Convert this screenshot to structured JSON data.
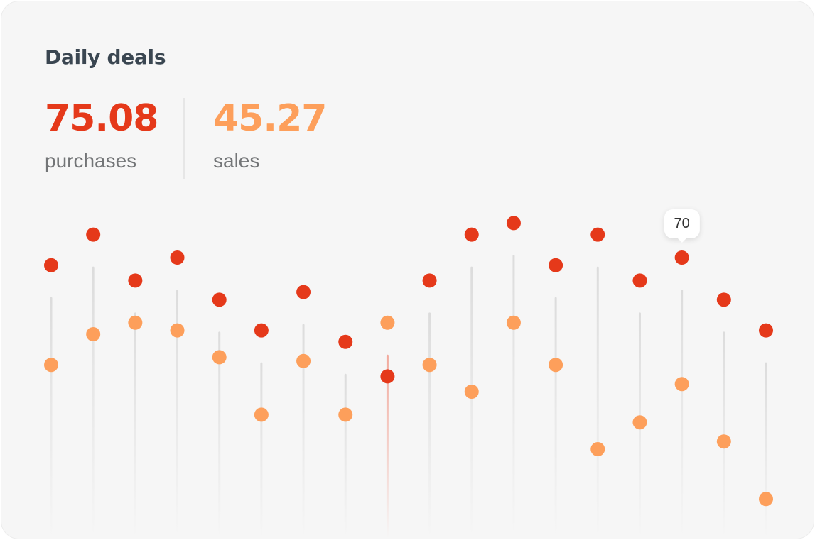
{
  "card": {
    "title": "Daily deals",
    "stats": [
      {
        "value": "75.08",
        "label": "purchases",
        "color": "#e5391a"
      },
      {
        "value": "45.27",
        "label": "sales",
        "color": "#fd9f5b"
      }
    ]
  },
  "chart_data": {
    "type": "scatter",
    "title": "Daily deals",
    "x": [
      1,
      2,
      3,
      4,
      5,
      6,
      7,
      8,
      9,
      10,
      11,
      12,
      13,
      14,
      15,
      16,
      17,
      18
    ],
    "series": [
      {
        "name": "purchases",
        "color": "#e5391a",
        "values": [
          68,
          76,
          64,
          70,
          59,
          51,
          61,
          48,
          39,
          64,
          76,
          79,
          68,
          76,
          64,
          70,
          59,
          51
        ]
      },
      {
        "name": "sales",
        "color": "#fd9f5b",
        "values": [
          42,
          50,
          53,
          51,
          44,
          29,
          43,
          29,
          53,
          42,
          35,
          53,
          42,
          20,
          27,
          37,
          22,
          7
        ]
      }
    ],
    "highlighted_index": 8,
    "tooltip": {
      "index": 15,
      "series": "purchases",
      "text": "70"
    },
    "grid": false,
    "legend": "none"
  }
}
